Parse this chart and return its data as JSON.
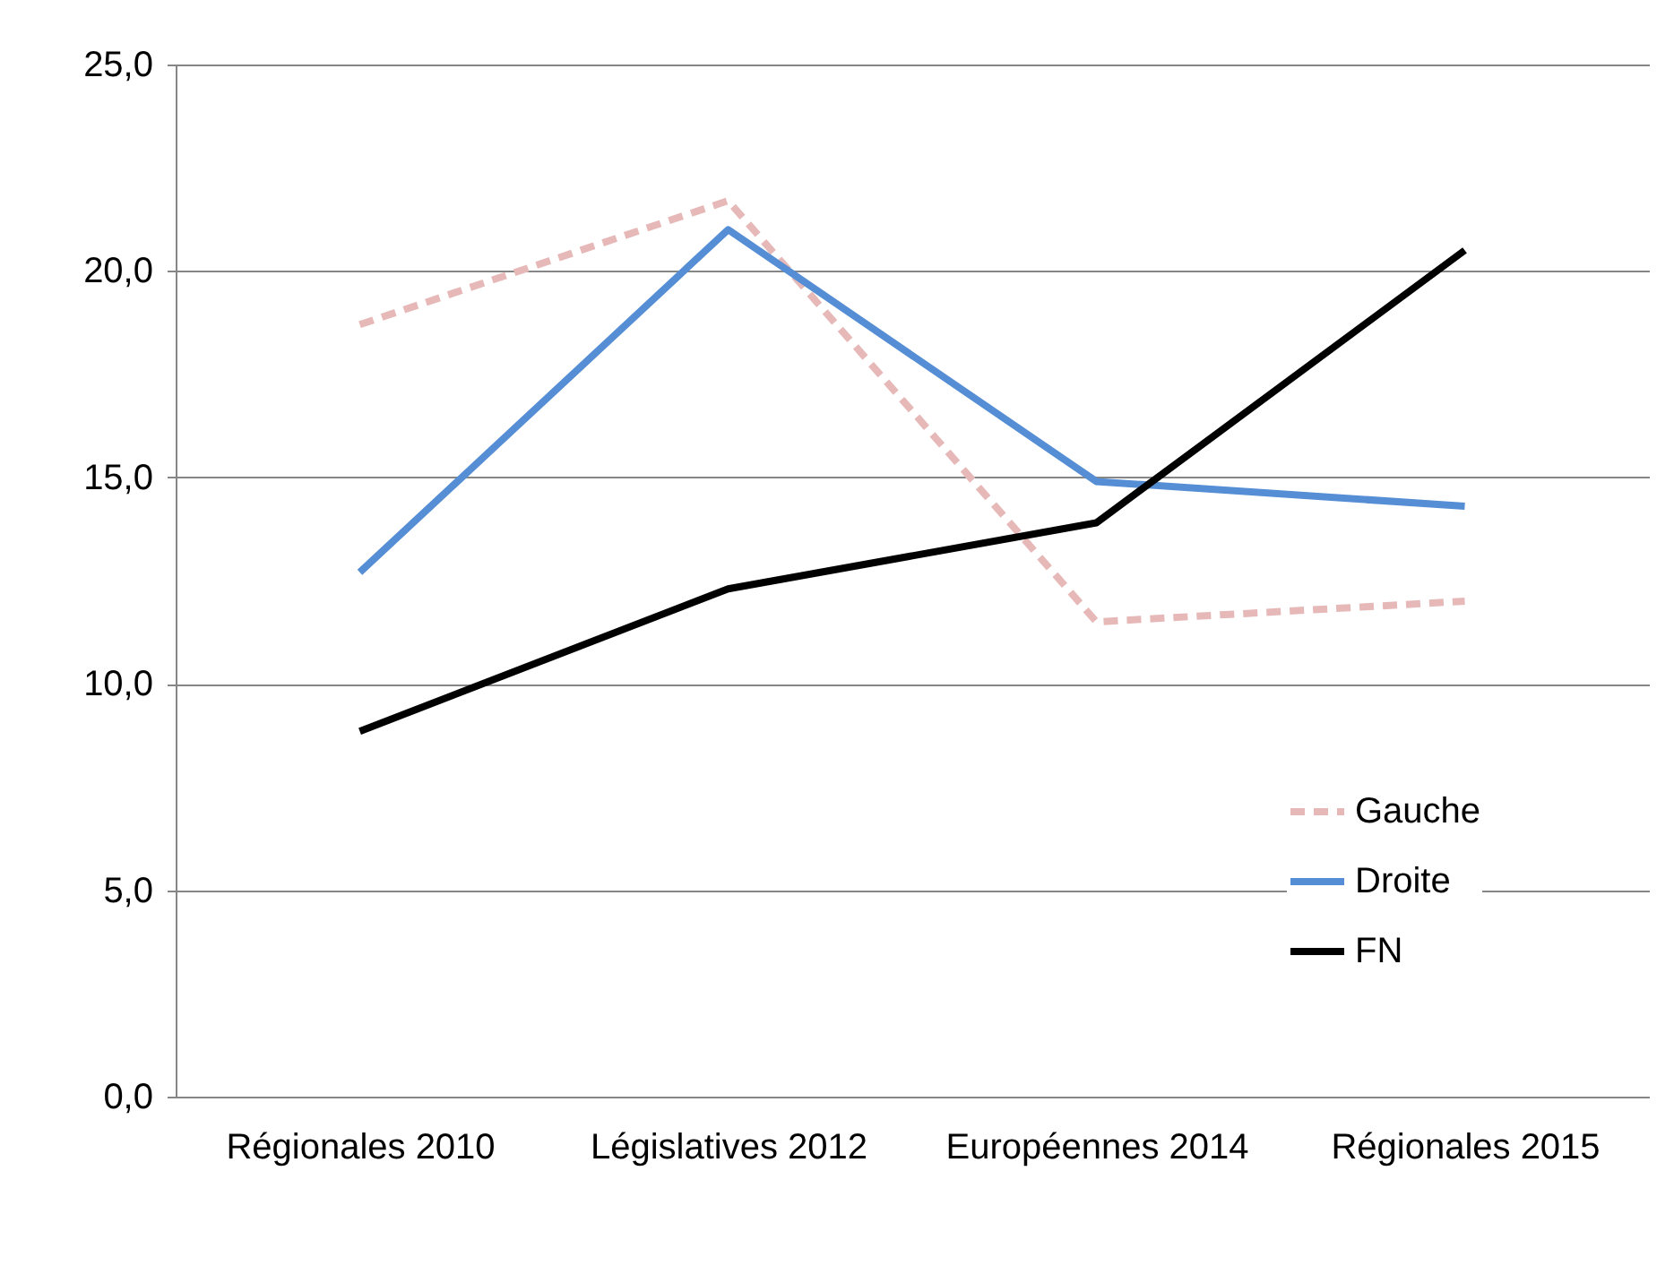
{
  "chart_data": {
    "type": "line",
    "categories": [
      "Régionales 2010",
      "Législatives 2012",
      "Européennes 2014",
      "Régionales 2015"
    ],
    "series": [
      {
        "name": "Gauche",
        "color": "#e6b9b8",
        "line_style": "dashed",
        "values": [
          18.7,
          21.7,
          11.5,
          12.0
        ]
      },
      {
        "name": "Droite",
        "color": "#558ed5",
        "line_style": "solid",
        "values": [
          12.7,
          21.0,
          14.9,
          14.3
        ]
      },
      {
        "name": "FN",
        "color": "#000000",
        "line_style": "solid",
        "values": [
          8.85,
          12.3,
          13.9,
          20.5
        ]
      }
    ],
    "ylim": [
      0,
      25
    ],
    "yticks": [
      {
        "value": 0,
        "label": "0,0"
      },
      {
        "value": 5,
        "label": "5,0"
      },
      {
        "value": 10,
        "label": "10,0"
      },
      {
        "value": 15,
        "label": "15,0"
      },
      {
        "value": 20,
        "label": "20,0"
      },
      {
        "value": 25,
        "label": "25,0"
      }
    ],
    "grid": "y",
    "legend": "right",
    "marker": "none"
  }
}
